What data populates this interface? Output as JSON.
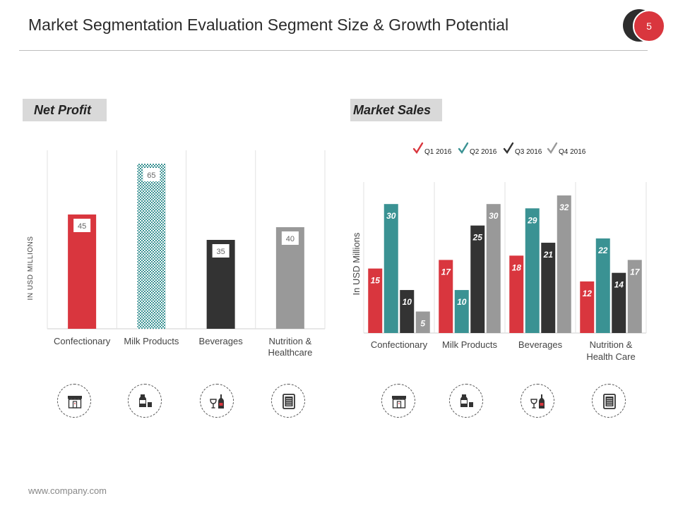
{
  "slide": {
    "title": "Market Segmentation Evaluation Segment Size & Growth Potential",
    "page_number": "5",
    "footer": "www.company.com"
  },
  "colors": {
    "red": "#d9363e",
    "teal": "#3a9293",
    "dark": "#333333",
    "gray": "#999999"
  },
  "chart_data": [
    {
      "type": "bar",
      "title": "Net Profit",
      "ylabel": "IN USD MILLIONS",
      "categories": [
        "Confectionary",
        "Milk Products",
        "Beverages",
        "Nutrition & Healthcare"
      ],
      "values": [
        45,
        65,
        35,
        40
      ],
      "bar_colors": [
        "#d9363e",
        "#3a9293",
        "#333333",
        "#999999"
      ],
      "ylim": [
        0,
        70
      ],
      "grid": "vertical separators"
    },
    {
      "type": "bar",
      "title": "Market Sales",
      "ylabel": "In USD Millions",
      "categories": [
        "Confectionary",
        "Milk Products",
        "Beverages",
        "Nutrition & Health Care"
      ],
      "series": [
        {
          "name": "Q1 2016",
          "color": "#d9363e",
          "values": [
            15,
            17,
            18,
            12
          ]
        },
        {
          "name": "Q2 2016",
          "color": "#3a9293",
          "values": [
            30,
            10,
            29,
            22
          ]
        },
        {
          "name": "Q3 2016",
          "color": "#333333",
          "values": [
            10,
            25,
            21,
            14
          ]
        },
        {
          "name": "Q4 2016",
          "color": "#999999",
          "values": [
            5,
            30,
            32,
            17
          ]
        }
      ],
      "ylim": [
        0,
        36
      ],
      "legend": "top",
      "grid": "vertical separators"
    }
  ],
  "icons": [
    "shop-icon",
    "milk-icon",
    "wine-icon",
    "checklist-icon"
  ]
}
